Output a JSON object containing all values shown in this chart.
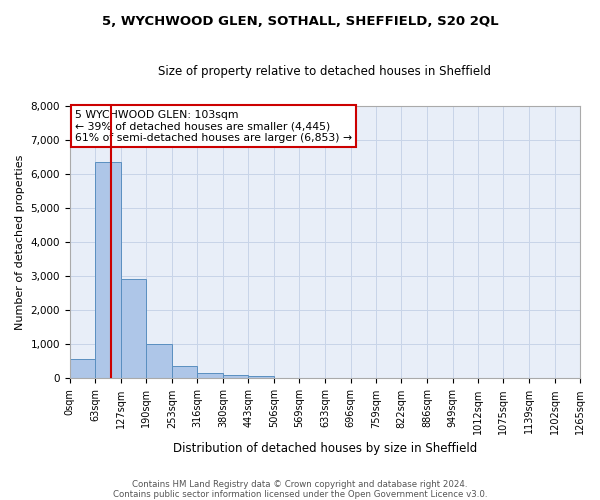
{
  "title": "5, WYCHWOOD GLEN, SOTHALL, SHEFFIELD, S20 2QL",
  "subtitle": "Size of property relative to detached houses in Sheffield",
  "xlabel": "Distribution of detached houses by size in Sheffield",
  "ylabel": "Number of detached properties",
  "footnote1": "Contains HM Land Registry data © Crown copyright and database right 2024.",
  "footnote2": "Contains public sector information licensed under the Open Government Licence v3.0.",
  "bin_edges": [
    0,
    63,
    127,
    190,
    253,
    316,
    380,
    443,
    506,
    569,
    633,
    696,
    759,
    822,
    886,
    949,
    1012,
    1075,
    1139,
    1202,
    1265
  ],
  "bar_heights": [
    570,
    6350,
    2920,
    1000,
    370,
    160,
    110,
    60,
    0,
    0,
    0,
    0,
    0,
    0,
    0,
    0,
    0,
    0,
    0,
    0
  ],
  "bar_color": "#aec6e8",
  "bar_edge_color": "#5a8fc0",
  "vline_x": 103,
  "vline_color": "#cc0000",
  "annotation_title": "5 WYCHWOOD GLEN: 103sqm",
  "annotation_line2": "← 39% of detached houses are smaller (4,445)",
  "annotation_line3": "61% of semi-detached houses are larger (6,853) →",
  "annotation_box_color": "#cc0000",
  "ylim": [
    0,
    8000
  ],
  "yticks": [
    0,
    1000,
    2000,
    3000,
    4000,
    5000,
    6000,
    7000,
    8000
  ],
  "grid_color": "#c8d4e8",
  "background_color": "#e8eef8",
  "figsize": [
    6.0,
    5.0
  ],
  "dpi": 100
}
